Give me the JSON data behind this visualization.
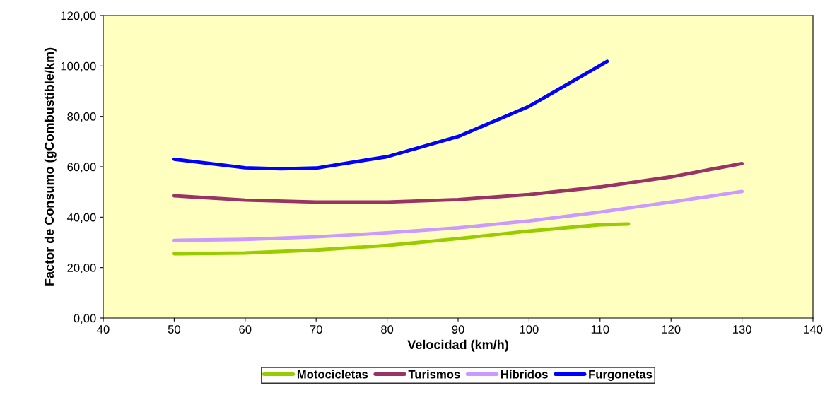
{
  "chart_data": {
    "type": "line",
    "xlabel": "Velocidad (km/h)",
    "ylabel": "Factor de Consumo (gCombustible/km)",
    "xlim": [
      40,
      140
    ],
    "xticks": [
      40,
      50,
      60,
      70,
      80,
      90,
      100,
      110,
      120,
      130,
      140
    ],
    "ylim": [
      0,
      120
    ],
    "yticks": [
      {
        "value": 0,
        "label": "0,00"
      },
      {
        "value": 20,
        "label": "20,00"
      },
      {
        "value": 40,
        "label": "40,00"
      },
      {
        "value": 60,
        "label": "60,00"
      },
      {
        "value": 80,
        "label": "80,00"
      },
      {
        "value": 100,
        "label": "100,00"
      },
      {
        "value": 120,
        "label": "120,00"
      }
    ],
    "grid": false,
    "legend": "bottom",
    "marker": "none",
    "line_style": "solid",
    "series": [
      {
        "name": "Motocicletas",
        "color": "#99cc00",
        "x": [
          50,
          60,
          70,
          80,
          90,
          100,
          110,
          114
        ],
        "values": [
          25.5,
          25.8,
          27,
          28.8,
          31.5,
          34.5,
          37,
          37.3
        ]
      },
      {
        "name": "Turismos",
        "color": "#993366",
        "x": [
          50,
          60,
          70,
          80,
          90,
          100,
          110,
          120,
          130
        ],
        "values": [
          48.5,
          46.8,
          46,
          46,
          47,
          49,
          52,
          56,
          61.3
        ]
      },
      {
        "name": "Híbridos",
        "color": "#cc99ff",
        "x": [
          50,
          60,
          70,
          80,
          90,
          100,
          110,
          120,
          130
        ],
        "values": [
          30.8,
          31.2,
          32.2,
          33.8,
          35.8,
          38.5,
          42,
          46,
          50.2
        ]
      },
      {
        "name": "Furgonetas",
        "color": "#0000ff",
        "x": [
          50,
          60,
          65,
          70,
          80,
          90,
          100,
          111
        ],
        "values": [
          63,
          59.6,
          59.2,
          59.5,
          64,
          72,
          84,
          101.8
        ]
      }
    ]
  }
}
